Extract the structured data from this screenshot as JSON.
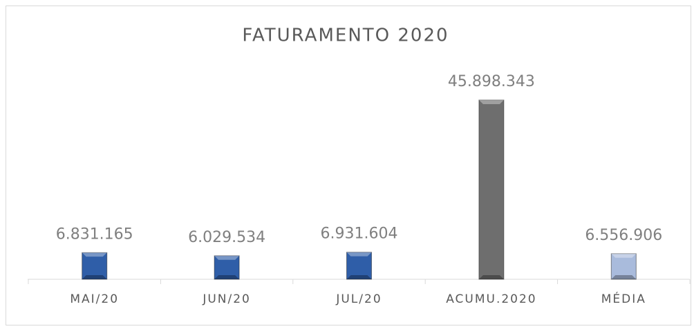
{
  "chart_data": {
    "type": "bar",
    "title": "FATURAMENTO 2020",
    "categories": [
      "MAI/20",
      "JUN/20",
      "JUL/20",
      "ACUMU.2020",
      "MÉDIA"
    ],
    "values": [
      6831165,
      6029534,
      6931604,
      45898343,
      6556906
    ],
    "value_labels": [
      "6.831.165",
      "6.029.534",
      "6.931.604",
      "45.898.343",
      "6.556.906"
    ],
    "colors": [
      "#2f5ea8",
      "#2f5ea8",
      "#2f5ea8",
      "#6e6e6e",
      "#a9bbdc"
    ]
  }
}
